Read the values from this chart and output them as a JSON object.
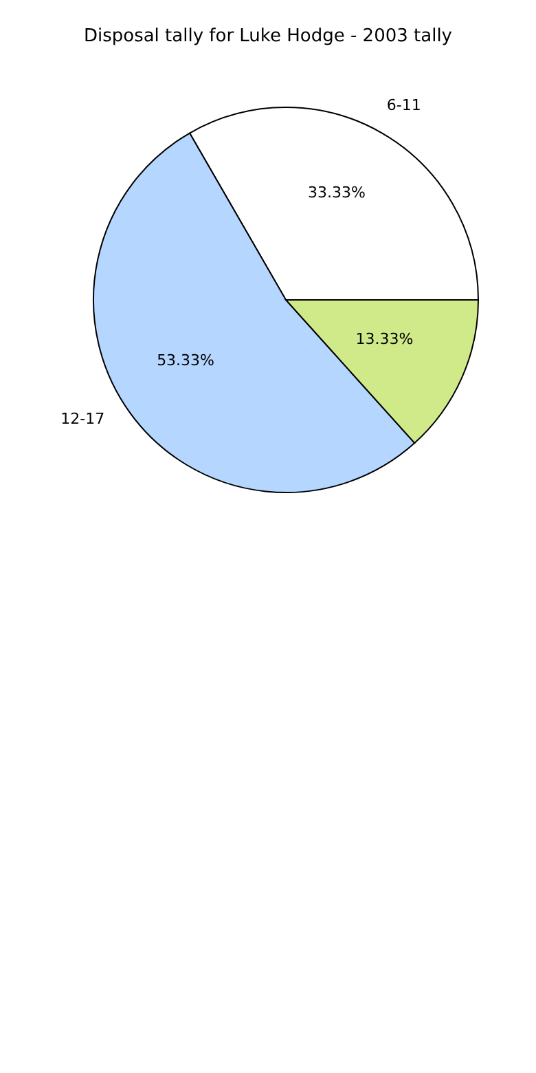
{
  "chart_data": {
    "type": "pie",
    "title": "Disposal tally for Luke Hodge - 2003 tally",
    "categories": [
      "6-11",
      "12-17",
      null
    ],
    "values": [
      33.33,
      53.33,
      13.33
    ],
    "value_labels": [
      "33.33%",
      "53.33%",
      "13.33%"
    ],
    "colors": [
      "#ffffff",
      "#b5d6fe",
      "#d0ea8a"
    ],
    "legend": false
  }
}
